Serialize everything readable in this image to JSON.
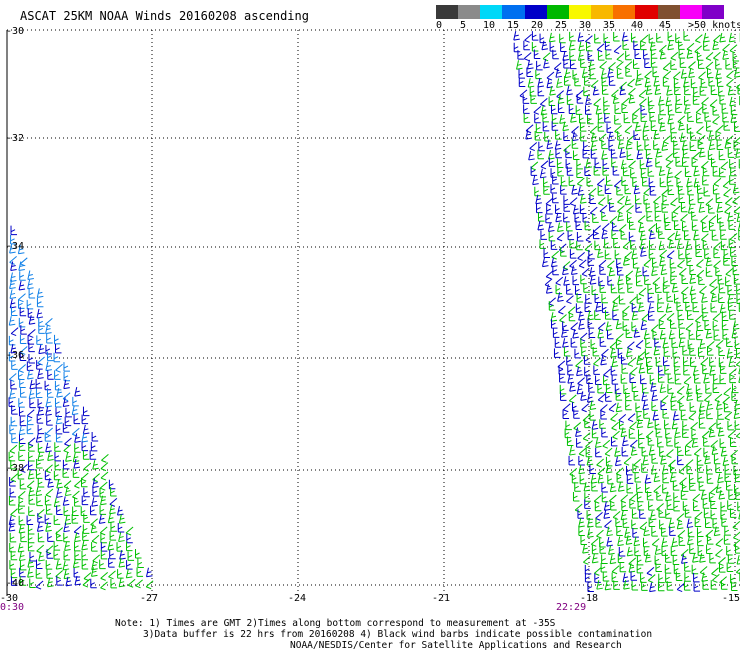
{
  "title": "ASCAT 25KM NOAA Winds 20160208 ascending",
  "legend": {
    "colors": [
      "#3a3a3a",
      "#8a8a8a",
      "#00d8f8",
      "#0070f0",
      "#0000c8",
      "#00b800",
      "#f8f800",
      "#f8b800",
      "#f87000",
      "#e00000",
      "#805030",
      "#f800f8",
      "#8000c8"
    ],
    "labels": [
      "0",
      "5",
      "10",
      "15",
      "20",
      "25",
      "30",
      "35",
      "40",
      "45",
      ">50 knots"
    ]
  },
  "lat_labels": [
    "-30",
    "-32",
    "-34",
    "-36",
    "-38",
    "-40"
  ],
  "lon_labels": [
    "-30",
    "-27",
    "-24",
    "-21",
    "-18",
    "-15"
  ],
  "time_labels": [
    "0:30",
    "22:29"
  ],
  "notes": [
    "Note: 1) Times are GMT 2)Times along bottom correspond to measurement at -35S",
    "3)Data buffer is 22 hrs from 20160208 4) Black wind barbs indicate possible contamination",
    "NOAA/NESDIS/Center for Satellite Applications and Research"
  ],
  "colors": {
    "gridline": "#000000",
    "time_label": "#800080",
    "barb_green": "#00c000",
    "barb_blue": "#0000c8",
    "barb_cyan": "#1080e8"
  }
}
